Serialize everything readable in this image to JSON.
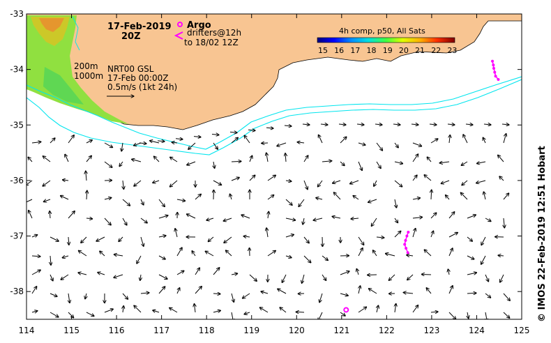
{
  "date_label": "17-Feb-2019",
  "time_label": "20Z",
  "legend": {
    "argo_label": "Argo",
    "drifters_line1": "drifters@12h",
    "drifters_line2": "to 18/02 12Z",
    "argo_color": "#ff00ff",
    "drifter_color": "#ff00ff"
  },
  "colorbar": {
    "title": "4h comp, p50, All Sats",
    "ticks": [
      "15",
      "16",
      "17",
      "18",
      "19",
      "20",
      "21",
      "22",
      "23"
    ],
    "min": 15,
    "max": 23.5
  },
  "isobaths": {
    "label_200": "200m",
    "label_1000": "1000m",
    "color": "#00e5ee"
  },
  "currents": {
    "product": "NRT00 GSL",
    "date": "17-Feb 00:00Z",
    "scale_label": "0.5m/s (1kt 24h)"
  },
  "axes": {
    "x_ticks": [
      "114",
      "115",
      "116",
      "117",
      "118",
      "119",
      "120",
      "121",
      "122",
      "123",
      "124",
      "125"
    ],
    "y_ticks": [
      "-33",
      "-34",
      "-35",
      "-36",
      "-37",
      "-38"
    ],
    "lon_range": [
      114,
      125
    ],
    "lat_range": [
      -38.5,
      -33
    ]
  },
  "colors": {
    "land": "#f8c592",
    "ocean": "#ffffff",
    "arrow": "#000000"
  },
  "argo_floats": [
    {
      "lon": 121.1,
      "lat": -38.33
    }
  ],
  "drifter_tracks": [
    {
      "points": [
        [
          124.35,
          -33.85
        ],
        [
          124.37,
          -33.92
        ],
        [
          124.38,
          -33.98
        ],
        [
          124.4,
          -34.05
        ],
        [
          124.42,
          -34.12
        ],
        [
          124.48,
          -34.18
        ]
      ]
    },
    {
      "points": [
        [
          122.48,
          -36.93
        ],
        [
          122.45,
          -37.0
        ],
        [
          122.42,
          -37.08
        ],
        [
          122.4,
          -37.15
        ],
        [
          122.43,
          -37.22
        ],
        [
          122.47,
          -37.3
        ]
      ]
    }
  ],
  "credit": "© IMOS 22-Feb-2019 12:51 Hobart"
}
